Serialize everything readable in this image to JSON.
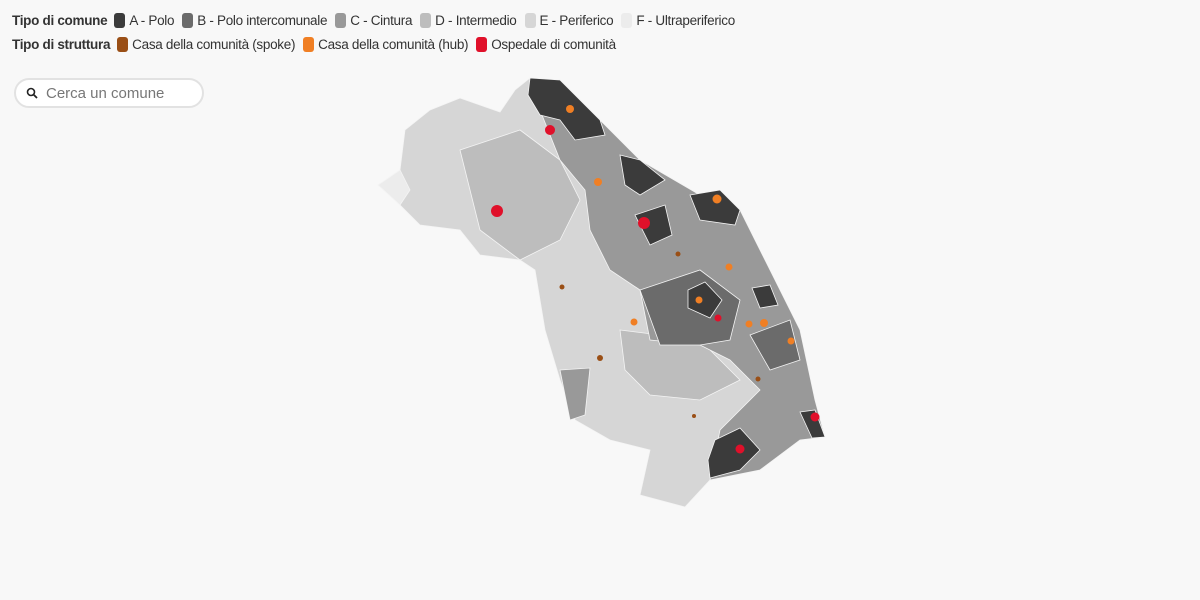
{
  "legend": {
    "comune": {
      "title": "Tipo di comune",
      "items": [
        {
          "label": "A - Polo",
          "color": "#3b3b3b"
        },
        {
          "label": "B - Polo intercomunale",
          "color": "#6b6b6b"
        },
        {
          "label": "C - Cintura",
          "color": "#999999"
        },
        {
          "label": "D - Intermedio",
          "color": "#bdbdbd"
        },
        {
          "label": "E - Periferico",
          "color": "#d6d6d6"
        },
        {
          "label": "F - Ultraperiferico",
          "color": "#ececec"
        }
      ]
    },
    "struttura": {
      "title": "Tipo di struttura",
      "items": [
        {
          "label": "Casa della comunità (spoke)",
          "color": "#9a4f16"
        },
        {
          "label": "Casa della comunità (hub)",
          "color": "#f07f24"
        },
        {
          "label": "Ospedale di comunità",
          "color": "#e0102a"
        }
      ]
    }
  },
  "search": {
    "placeholder": "Cerca un comune"
  }
}
